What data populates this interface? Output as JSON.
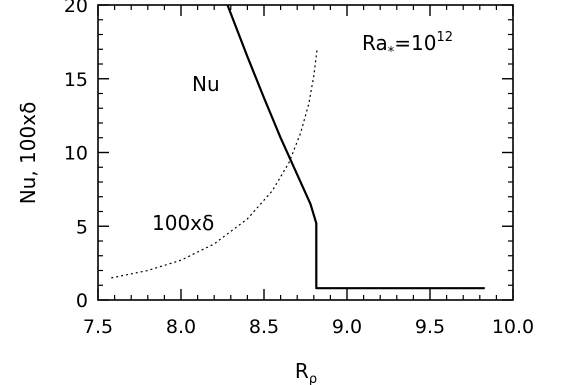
{
  "chart_data": {
    "type": "line",
    "xlabel": "R",
    "xlabel_sub": "ρ",
    "ylabel": "Nu, 100xδ",
    "xlim": [
      7.5,
      10.0
    ],
    "ylim": [
      0,
      20
    ],
    "x_ticks": [
      "7.5",
      "8.0",
      "8.5",
      "9.0",
      "9.5",
      "10.0"
    ],
    "x_tick_values": [
      7.5,
      8.0,
      8.5,
      9.0,
      9.5,
      10.0
    ],
    "y_ticks": [
      "0",
      "5",
      "10",
      "15",
      "20"
    ],
    "y_tick_values": [
      0,
      5,
      10,
      15,
      20
    ],
    "grid": false,
    "series": [
      {
        "name": "Nu",
        "style": "solid",
        "color": "#000000",
        "x": [
          8.28,
          8.4,
          8.5,
          8.6,
          8.7,
          8.78,
          8.815,
          8.815,
          8.815,
          9.0,
          9.5,
          9.83
        ],
        "y": [
          20.0,
          16.5,
          13.7,
          11.0,
          8.5,
          6.5,
          5.2,
          2.0,
          0.8,
          0.8,
          0.8,
          0.8
        ]
      },
      {
        "name": "100xδ",
        "style": "dotted",
        "color": "#000000",
        "x": [
          7.58,
          7.8,
          8.0,
          8.2,
          8.4,
          8.55,
          8.65,
          8.72,
          8.77,
          8.8,
          8.82
        ],
        "y": [
          1.5,
          2.0,
          2.7,
          3.8,
          5.5,
          7.4,
          9.3,
          11.3,
          13.3,
          15.2,
          17.0
        ]
      }
    ],
    "annotations": {
      "nu_label": "Nu",
      "delta_label": "100xδ",
      "ra_base": "Ra",
      "ra_sub": "*",
      "ra_eq": "=10",
      "ra_exp": "12"
    }
  }
}
